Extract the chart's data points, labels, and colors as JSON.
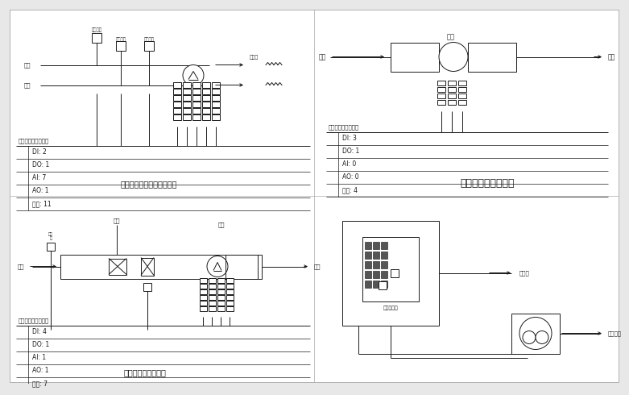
{
  "bg_color": "#e8e8e8",
  "line_color": "#1a1a1a",
  "title1": "建筑物入口冷水监控系统图",
  "title2": "送排风机监控系统图",
  "title3": "空调机组控制系统图",
  "table1_header": "输入输出控制点类型",
  "table1_rows": [
    "DI: 2",
    "DO: 1",
    "AI: 7",
    "AO: 1",
    "合计: 11"
  ],
  "table2_header": "输入输出控制点类型",
  "table2_rows": [
    "DI: 3",
    "DO: 1",
    "AI: 0",
    "AO: 0",
    "合计: 4"
  ],
  "table3_header": "输入输出控制点类型",
  "table3_rows": [
    "DI: 4",
    "DO: 1",
    "AI: 1",
    "AO: 1",
    "合计: 7"
  ],
  "label_rewu": "热水",
  "label_lenshui": "冷水",
  "label_rewu_wendu": "热水温度",
  "label_lenshui_wendu": "冷水温度",
  "label_lenshui_liuliang": "冷水流量",
  "label_huanre": "换热器",
  "label_jinfeng": "进风",
  "label_chufeng": "出风",
  "label_fengji": "风机",
  "label_paifeng": "排风",
  "label_huifeng": "回风",
  "label_songfeng": "送风",
  "label_shenghuo": "生活热水箱",
  "label_mouyonghu": "某用户",
  "label_chengshi": "城市供水"
}
